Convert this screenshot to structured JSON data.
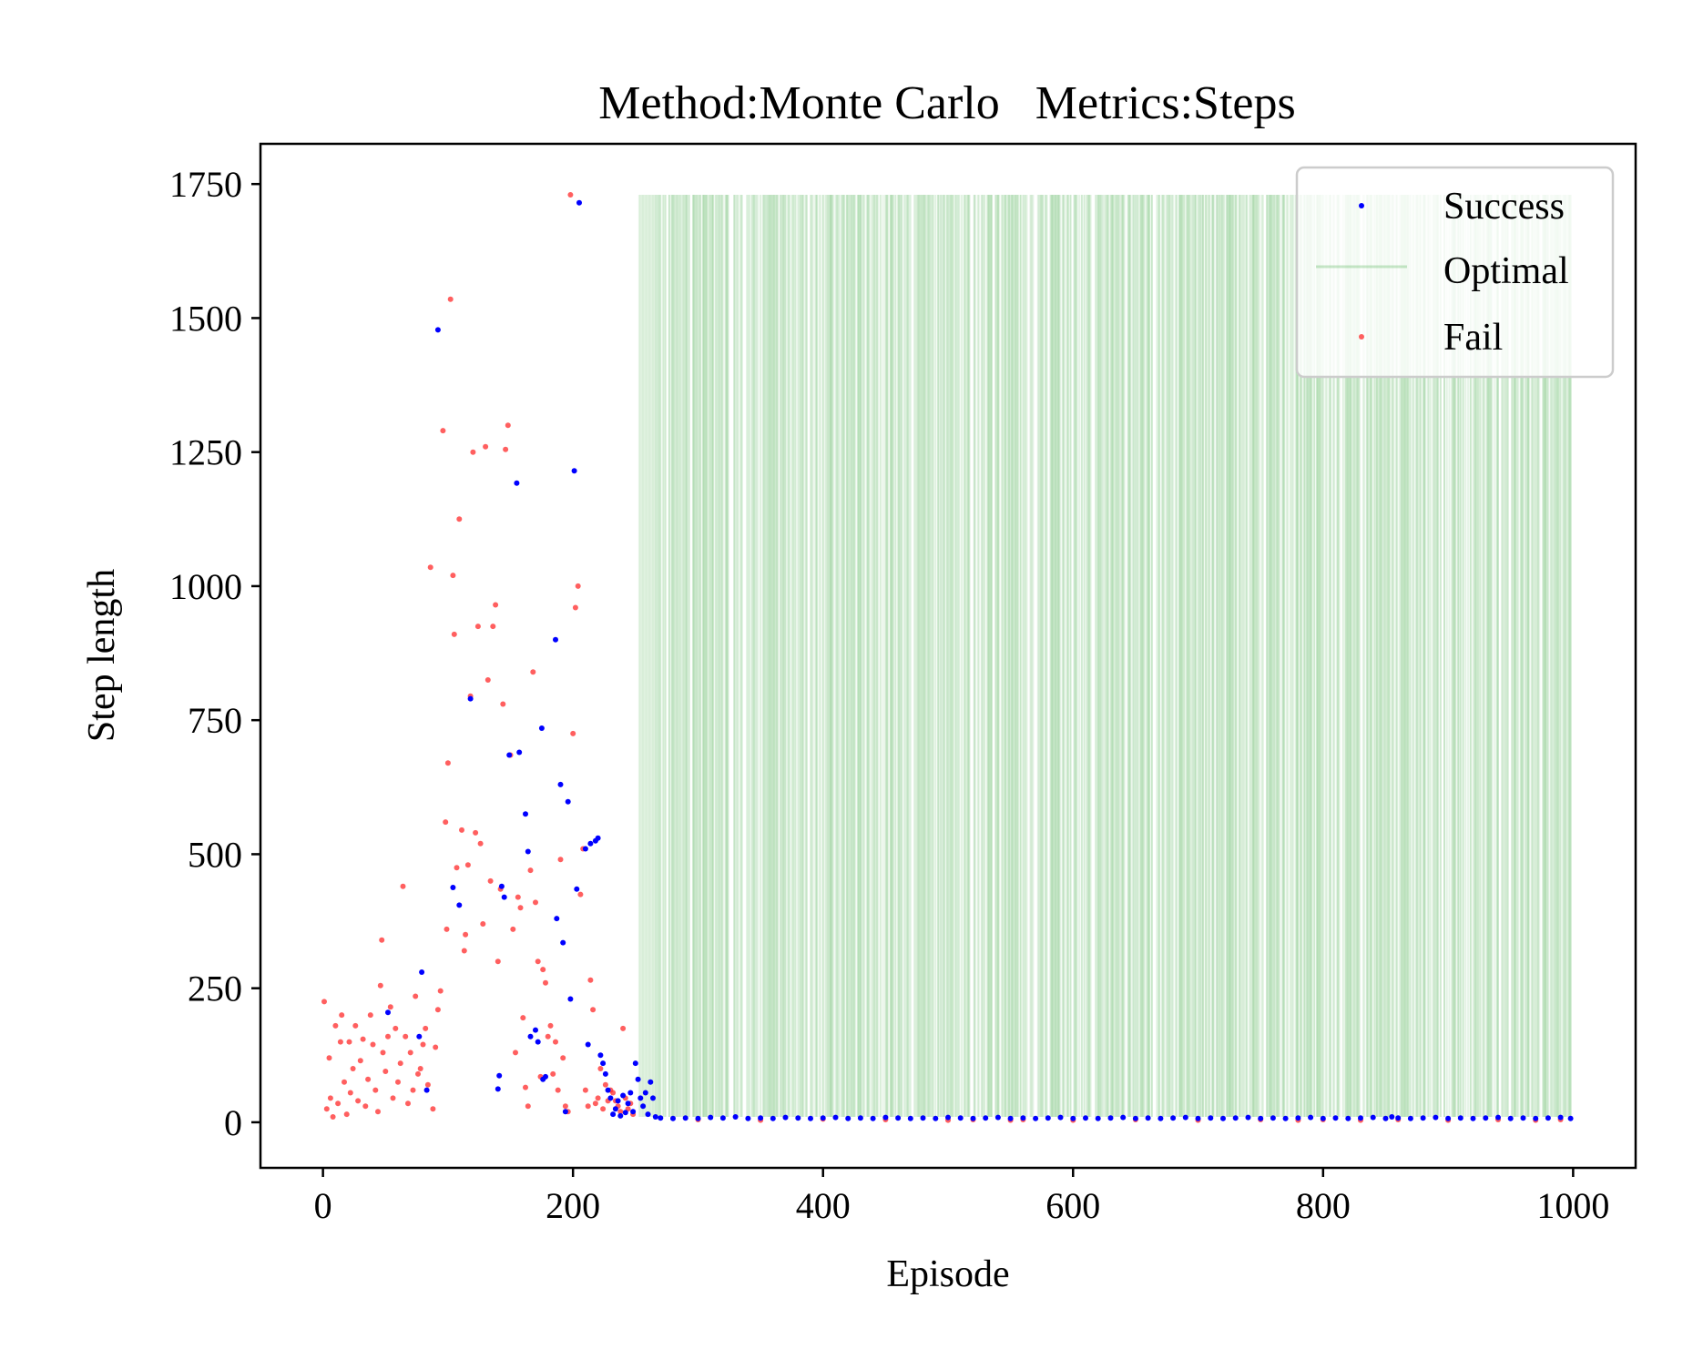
{
  "chart_data": {
    "type": "scatter",
    "title": "Method:Monte Carlo   Metrics:Steps",
    "xlabel": "Episode",
    "ylabel": "Step length",
    "xlim": [
      -50,
      1050
    ],
    "ylim": [
      -85,
      1825
    ],
    "xticks": [
      "0",
      "200",
      "400",
      "600",
      "800",
      "1000"
    ],
    "yticks": [
      "0",
      "250",
      "500",
      "750",
      "1000",
      "1250",
      "1500",
      "1750"
    ],
    "grid": false,
    "legend": {
      "placement": "top-right",
      "entries": [
        "Success",
        "Optimal",
        "Fail"
      ]
    },
    "colors": {
      "success": "#0000ff",
      "fail": "#ff2a2a",
      "optimal": "#4caf50"
    },
    "series": [
      {
        "name": "Success",
        "marker": "dot",
        "points": [
          [
            52,
            205
          ],
          [
            77,
            160
          ],
          [
            79,
            280
          ],
          [
            83,
            60
          ],
          [
            92,
            1478
          ],
          [
            104,
            438
          ],
          [
            109,
            405
          ],
          [
            118,
            790
          ],
          [
            140,
            62
          ],
          [
            141,
            87
          ],
          [
            143,
            440
          ],
          [
            145,
            420
          ],
          [
            149,
            685
          ],
          [
            155,
            1192
          ],
          [
            157,
            690
          ],
          [
            162,
            575
          ],
          [
            164,
            505
          ],
          [
            166,
            160
          ],
          [
            170,
            172
          ],
          [
            172,
            150
          ],
          [
            175,
            735
          ],
          [
            176,
            80
          ],
          [
            178,
            85
          ],
          [
            186,
            900
          ],
          [
            187,
            380
          ],
          [
            190,
            630
          ],
          [
            192,
            335
          ],
          [
            194,
            20
          ],
          [
            196,
            598
          ],
          [
            198,
            230
          ],
          [
            201,
            1215
          ],
          [
            203,
            435
          ],
          [
            205,
            1715
          ],
          [
            210,
            510
          ],
          [
            212,
            145
          ],
          [
            214,
            520
          ],
          [
            218,
            525
          ],
          [
            220,
            530
          ],
          [
            222,
            125
          ],
          [
            224,
            110
          ],
          [
            226,
            90
          ],
          [
            228,
            60
          ],
          [
            230,
            45
          ],
          [
            232,
            15
          ],
          [
            234,
            25
          ],
          [
            236,
            40
          ],
          [
            238,
            12
          ],
          [
            240,
            50
          ],
          [
            242,
            18
          ],
          [
            244,
            35
          ],
          [
            246,
            55
          ],
          [
            248,
            20
          ],
          [
            250,
            110
          ],
          [
            252,
            80
          ],
          [
            254,
            45
          ],
          [
            256,
            30
          ],
          [
            258,
            55
          ],
          [
            260,
            15
          ],
          [
            262,
            75
          ],
          [
            264,
            45
          ],
          [
            266,
            10
          ],
          [
            270,
            8
          ],
          [
            280,
            7
          ],
          [
            290,
            8
          ],
          [
            300,
            7
          ],
          [
            310,
            9
          ],
          [
            320,
            8
          ],
          [
            330,
            10
          ],
          [
            340,
            7
          ],
          [
            350,
            8
          ],
          [
            360,
            7
          ],
          [
            370,
            9
          ],
          [
            380,
            8
          ],
          [
            390,
            7
          ],
          [
            400,
            8
          ],
          [
            410,
            9
          ],
          [
            420,
            7
          ],
          [
            430,
            8
          ],
          [
            440,
            7
          ],
          [
            450,
            9
          ],
          [
            460,
            8
          ],
          [
            470,
            7
          ],
          [
            480,
            8
          ],
          [
            490,
            7
          ],
          [
            500,
            9
          ],
          [
            510,
            8
          ],
          [
            520,
            7
          ],
          [
            530,
            8
          ],
          [
            540,
            9
          ],
          [
            550,
            7
          ],
          [
            560,
            8
          ],
          [
            570,
            7
          ],
          [
            580,
            8
          ],
          [
            590,
            9
          ],
          [
            600,
            7
          ],
          [
            610,
            8
          ],
          [
            620,
            7
          ],
          [
            630,
            8
          ],
          [
            640,
            9
          ],
          [
            650,
            7
          ],
          [
            660,
            8
          ],
          [
            670,
            7
          ],
          [
            680,
            8
          ],
          [
            690,
            9
          ],
          [
            700,
            7
          ],
          [
            710,
            8
          ],
          [
            720,
            7
          ],
          [
            730,
            8
          ],
          [
            740,
            9
          ],
          [
            750,
            7
          ],
          [
            760,
            8
          ],
          [
            770,
            7
          ],
          [
            780,
            8
          ],
          [
            790,
            9
          ],
          [
            800,
            7
          ],
          [
            810,
            8
          ],
          [
            820,
            7
          ],
          [
            830,
            8
          ],
          [
            840,
            9
          ],
          [
            850,
            7
          ],
          [
            855,
            10
          ],
          [
            860,
            8
          ],
          [
            870,
            7
          ],
          [
            880,
            8
          ],
          [
            890,
            9
          ],
          [
            900,
            7
          ],
          [
            910,
            8
          ],
          [
            920,
            7
          ],
          [
            930,
            8
          ],
          [
            940,
            9
          ],
          [
            950,
            7
          ],
          [
            960,
            8
          ],
          [
            970,
            7
          ],
          [
            980,
            8
          ],
          [
            990,
            9
          ],
          [
            998,
            7
          ]
        ]
      },
      {
        "name": "Fail",
        "marker": "dot",
        "points": [
          [
            1,
            225
          ],
          [
            3,
            25
          ],
          [
            5,
            120
          ],
          [
            6,
            45
          ],
          [
            8,
            10
          ],
          [
            10,
            180
          ],
          [
            12,
            35
          ],
          [
            14,
            150
          ],
          [
            15,
            200
          ],
          [
            17,
            75
          ],
          [
            19,
            15
          ],
          [
            21,
            150
          ],
          [
            22,
            55
          ],
          [
            24,
            100
          ],
          [
            26,
            180
          ],
          [
            28,
            40
          ],
          [
            30,
            115
          ],
          [
            32,
            155
          ],
          [
            34,
            30
          ],
          [
            36,
            80
          ],
          [
            38,
            200
          ],
          [
            40,
            145
          ],
          [
            42,
            60
          ],
          [
            44,
            20
          ],
          [
            46,
            255
          ],
          [
            47,
            340
          ],
          [
            48,
            130
          ],
          [
            50,
            95
          ],
          [
            52,
            160
          ],
          [
            54,
            215
          ],
          [
            56,
            45
          ],
          [
            58,
            175
          ],
          [
            60,
            75
          ],
          [
            62,
            110
          ],
          [
            64,
            440
          ],
          [
            66,
            160
          ],
          [
            68,
            35
          ],
          [
            70,
            130
          ],
          [
            72,
            60
          ],
          [
            74,
            235
          ],
          [
            76,
            90
          ],
          [
            78,
            100
          ],
          [
            80,
            145
          ],
          [
            82,
            175
          ],
          [
            84,
            70
          ],
          [
            86,
            1035
          ],
          [
            88,
            25
          ],
          [
            90,
            140
          ],
          [
            92,
            210
          ],
          [
            94,
            245
          ],
          [
            96,
            1290
          ],
          [
            98,
            560
          ],
          [
            99,
            360
          ],
          [
            100,
            670
          ],
          [
            102,
            1535
          ],
          [
            104,
            1020
          ],
          [
            105,
            910
          ],
          [
            107,
            475
          ],
          [
            109,
            1125
          ],
          [
            111,
            545
          ],
          [
            113,
            320
          ],
          [
            114,
            350
          ],
          [
            116,
            480
          ],
          [
            118,
            795
          ],
          [
            120,
            1250
          ],
          [
            122,
            540
          ],
          [
            124,
            925
          ],
          [
            126,
            520
          ],
          [
            128,
            370
          ],
          [
            130,
            1260
          ],
          [
            132,
            825
          ],
          [
            134,
            450
          ],
          [
            136,
            925
          ],
          [
            138,
            965
          ],
          [
            140,
            300
          ],
          [
            142,
            435
          ],
          [
            144,
            780
          ],
          [
            146,
            1255
          ],
          [
            148,
            1300
          ],
          [
            150,
            685
          ],
          [
            152,
            360
          ],
          [
            154,
            130
          ],
          [
            156,
            420
          ],
          [
            158,
            400
          ],
          [
            160,
            195
          ],
          [
            162,
            65
          ],
          [
            164,
            30
          ],
          [
            166,
            470
          ],
          [
            168,
            840
          ],
          [
            170,
            410
          ],
          [
            172,
            300
          ],
          [
            174,
            85
          ],
          [
            176,
            285
          ],
          [
            178,
            260
          ],
          [
            180,
            160
          ],
          [
            182,
            180
          ],
          [
            184,
            90
          ],
          [
            186,
            150
          ],
          [
            188,
            60
          ],
          [
            190,
            490
          ],
          [
            192,
            120
          ],
          [
            194,
            30
          ],
          [
            196,
            20
          ],
          [
            198,
            1730
          ],
          [
            200,
            725
          ],
          [
            202,
            960
          ],
          [
            204,
            1000
          ],
          [
            206,
            425
          ],
          [
            208,
            510
          ],
          [
            210,
            60
          ],
          [
            212,
            30
          ],
          [
            214,
            265
          ],
          [
            216,
            210
          ],
          [
            218,
            35
          ],
          [
            220,
            45
          ],
          [
            222,
            100
          ],
          [
            224,
            25
          ],
          [
            226,
            70
          ],
          [
            228,
            40
          ],
          [
            230,
            60
          ],
          [
            232,
            55
          ],
          [
            234,
            40
          ],
          [
            236,
            30
          ],
          [
            238,
            20
          ],
          [
            240,
            175
          ],
          [
            242,
            45
          ],
          [
            244,
            25
          ],
          [
            246,
            35
          ],
          [
            248,
            15
          ],
          [
            300,
            5
          ],
          [
            350,
            4
          ],
          [
            400,
            6
          ],
          [
            450,
            5
          ],
          [
            500,
            4
          ],
          [
            520,
            5
          ],
          [
            550,
            4
          ],
          [
            560,
            5
          ],
          [
            600,
            4
          ],
          [
            650,
            5
          ],
          [
            700,
            4
          ],
          [
            750,
            5
          ],
          [
            780,
            4
          ],
          [
            800,
            5
          ],
          [
            830,
            4
          ],
          [
            860,
            5
          ],
          [
            900,
            4
          ],
          [
            940,
            5
          ],
          [
            970,
            4
          ],
          [
            990,
            5
          ]
        ]
      },
      {
        "name": "Optimal",
        "style": "vertical-lines",
        "ymin": 10,
        "ymax": 1730,
        "x_range": [
          253,
          999
        ]
      }
    ]
  }
}
